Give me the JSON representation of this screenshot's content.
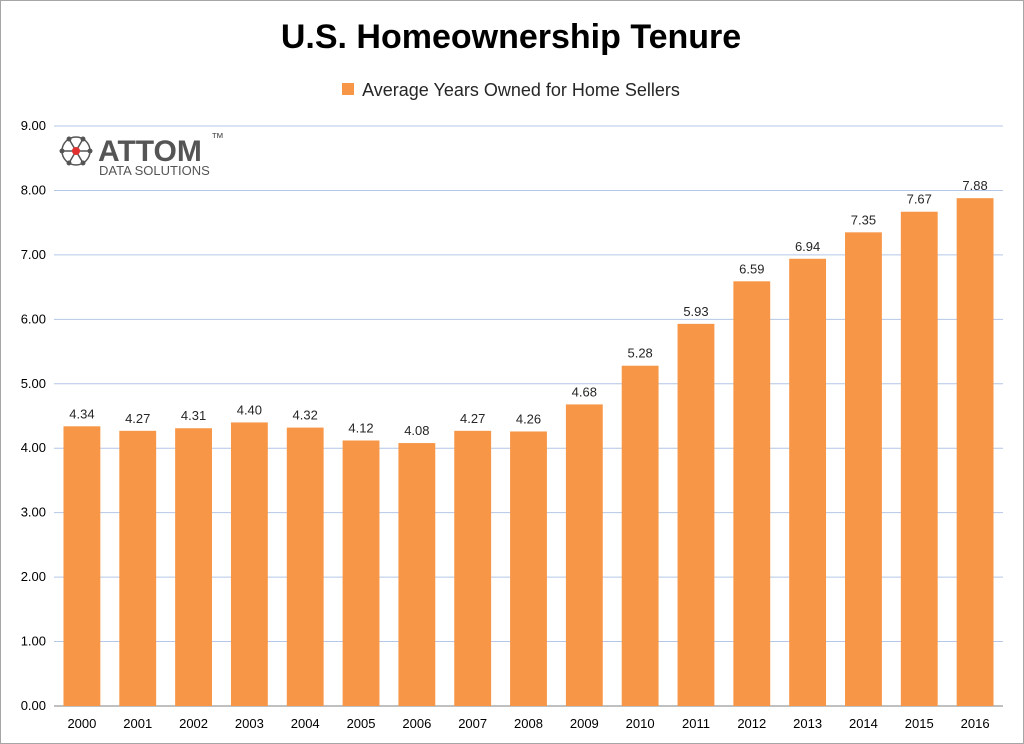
{
  "chart_data": {
    "type": "bar",
    "title": "U.S. Homeownership Tenure",
    "categories": [
      "2000",
      "2001",
      "2002",
      "2003",
      "2004",
      "2005",
      "2006",
      "2007",
      "2008",
      "2009",
      "2010",
      "2011",
      "2012",
      "2013",
      "2014",
      "2015",
      "2016"
    ],
    "series": [
      {
        "name": "Average Years Owned for Home Sellers",
        "values": [
          4.34,
          4.27,
          4.31,
          4.4,
          4.32,
          4.12,
          4.08,
          4.27,
          4.26,
          4.68,
          5.28,
          5.93,
          6.59,
          6.94,
          7.35,
          7.67,
          7.88
        ],
        "color": "#f79646"
      }
    ],
    "ylim": [
      0,
      9
    ],
    "ytick_step": 1,
    "ytick_decimals": 2,
    "grid": true,
    "legend_position": "top",
    "data_labels": true
  },
  "logo": {
    "name": "ATTOM",
    "tagline": "DATA SOLUTIONS",
    "trademark": "™",
    "icon": "network-icon"
  },
  "colors": {
    "gridline": "#b4c7e7",
    "axis": "#808080",
    "accent": "#f79646"
  }
}
